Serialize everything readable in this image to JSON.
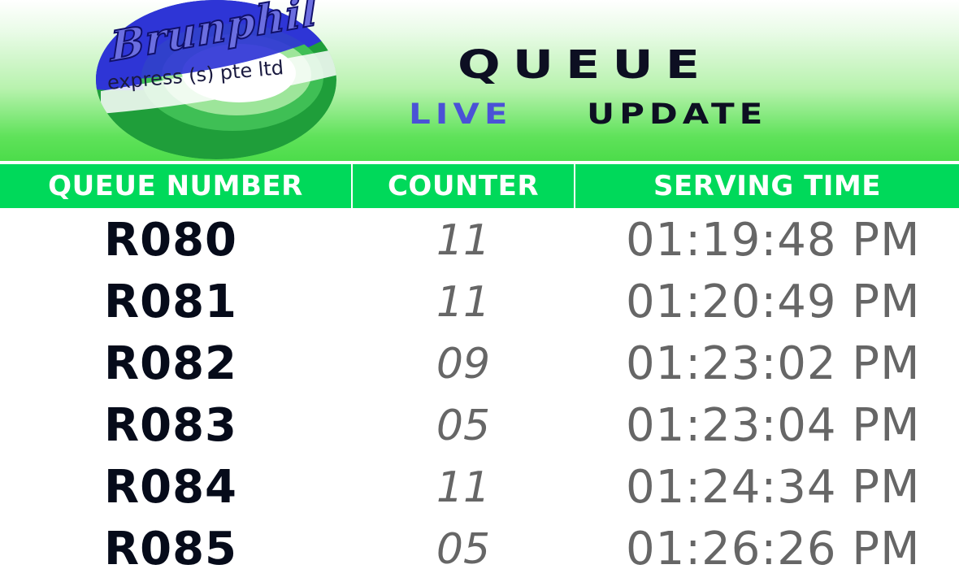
{
  "logo": {
    "brand_script": "Brunphil",
    "brand_sub": "express (s) pte ltd",
    "colors": {
      "blue": "#2f35d6",
      "green": "#1aa33a",
      "light_green": "#8fe08a"
    }
  },
  "title": {
    "line1": "QUEUE",
    "live": "LIVE",
    "update": "UPDATE"
  },
  "table": {
    "headers": {
      "queue_number": "QUEUE NUMBER",
      "counter": "COUNTER",
      "serving_time": "SERVING TIME"
    },
    "rows": [
      {
        "queue_number": "R080",
        "counter": "11",
        "serving_time": "01:19:48 PM"
      },
      {
        "queue_number": "R081",
        "counter": "11",
        "serving_time": "01:20:49 PM"
      },
      {
        "queue_number": "R082",
        "counter": "09",
        "serving_time": "01:23:02 PM"
      },
      {
        "queue_number": "R083",
        "counter": "05",
        "serving_time": "01:23:04 PM"
      },
      {
        "queue_number": "R084",
        "counter": "11",
        "serving_time": "01:24:34 PM"
      },
      {
        "queue_number": "R085",
        "counter": "05",
        "serving_time": "01:26:26 PM"
      }
    ]
  },
  "colors": {
    "header_bar": "#00d95a",
    "queue_text": "#060b1a",
    "value_text": "#666666",
    "live_text": "#4a52d6"
  }
}
